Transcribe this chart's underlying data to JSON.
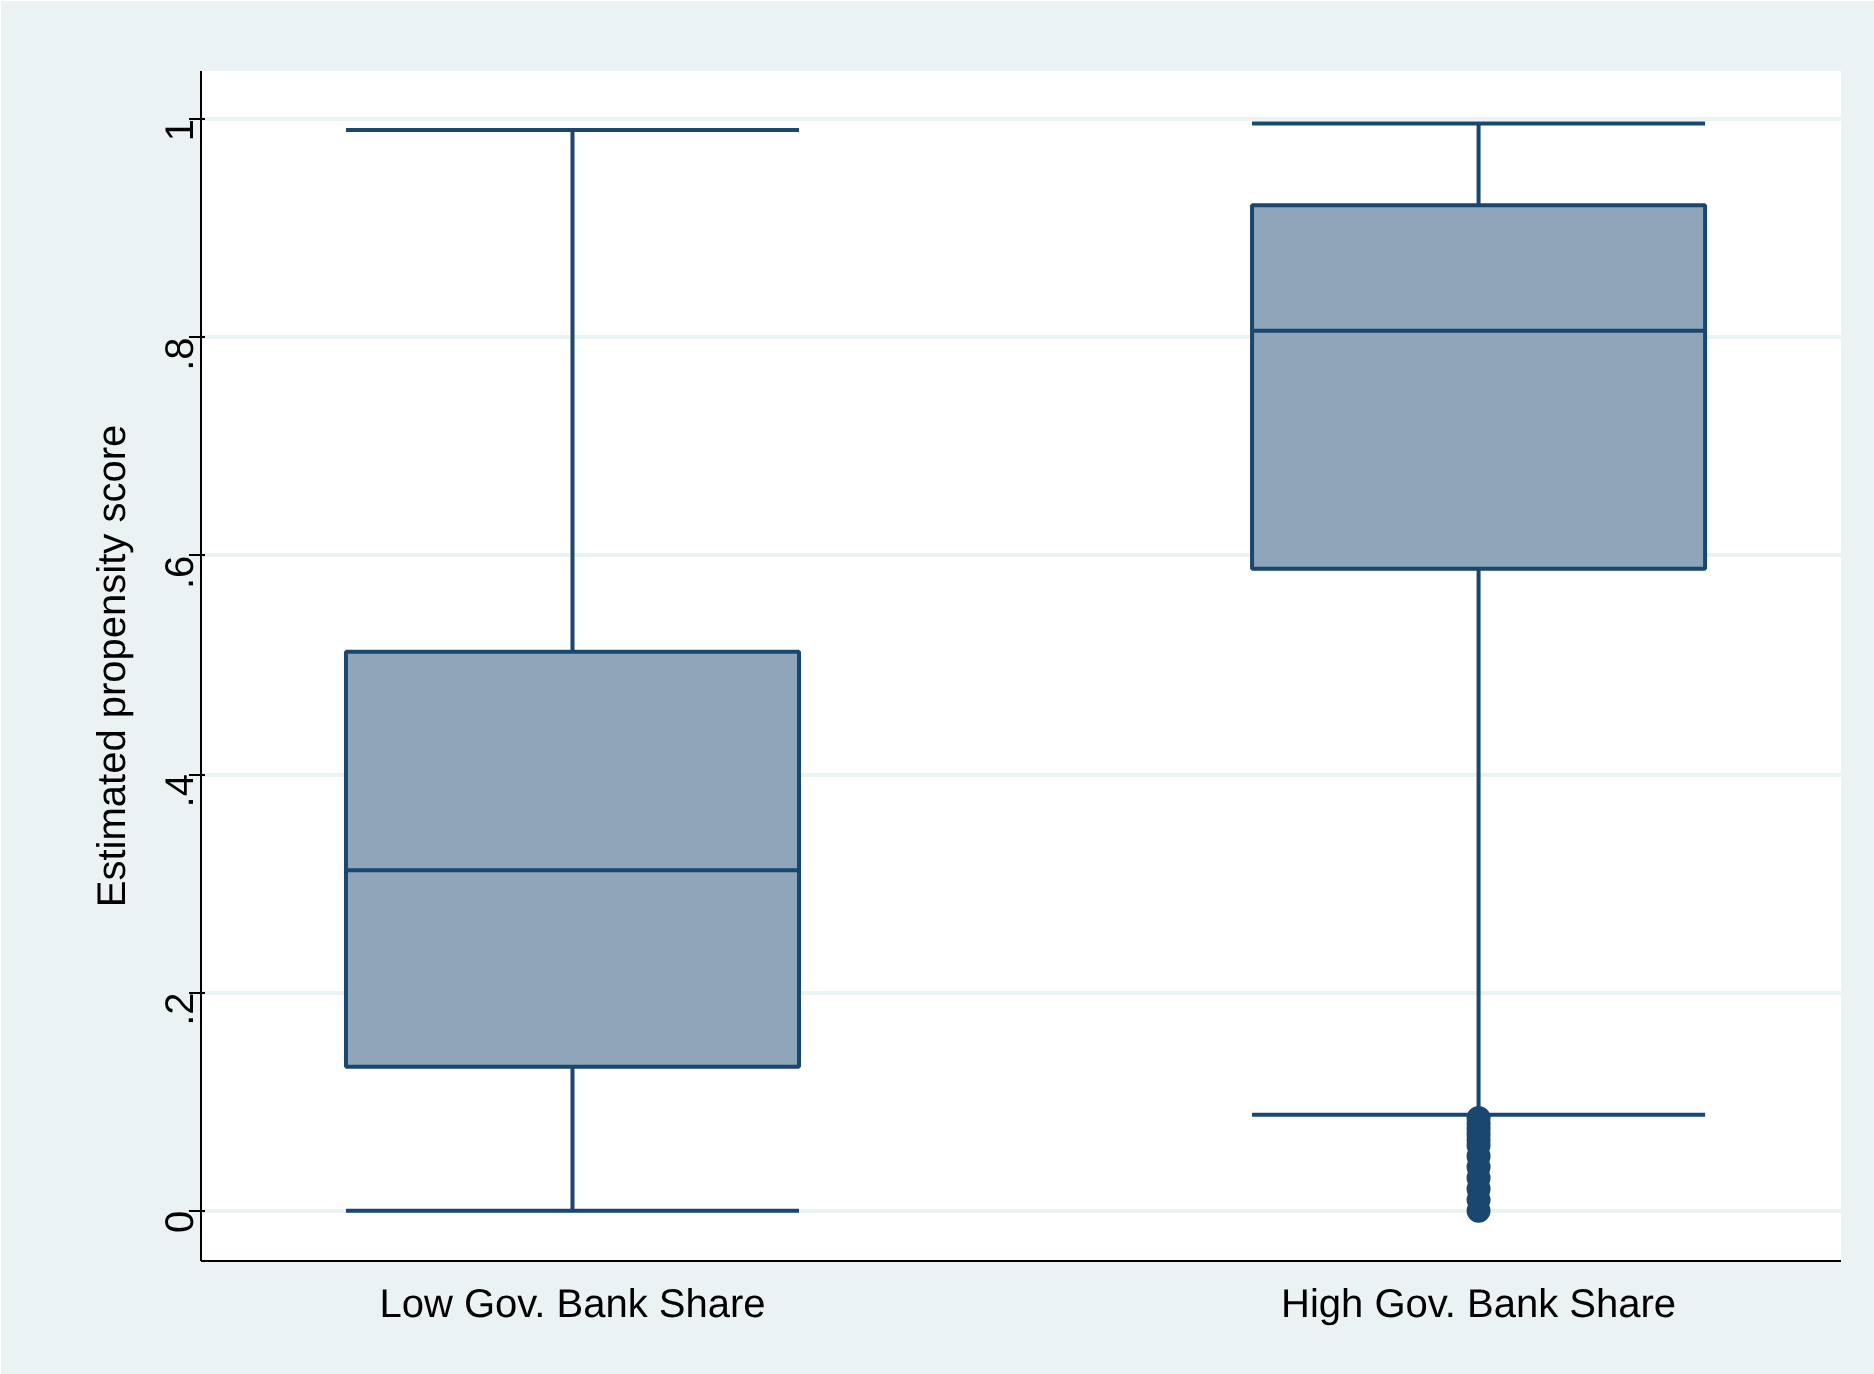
{
  "chart_data": {
    "type": "box",
    "ylabel": "Estimated propensity score",
    "categories": [
      "Low Gov. Bank Share",
      "High Gov. Bank Share"
    ],
    "boxes": [
      {
        "low": 0,
        "q1": 0.132,
        "median": 0.312,
        "q3": 0.512,
        "high": 0.99
      },
      {
        "low": 0.088,
        "q1": 0.588,
        "median": 0.806,
        "q3": 0.921,
        "high": 0.996,
        "outliers": [
          0.085,
          0.08,
          0.075,
          0.07,
          0.065,
          0.06,
          0.05,
          0.04,
          0.03,
          0.02,
          0.01,
          0
        ]
      }
    ],
    "color": "#8ea5ba",
    "ylim": [
      -0.046,
      1.044
    ],
    "yticks": [
      {
        "value": 0,
        "label": "0"
      },
      {
        "value": 0.2,
        "label": ".2"
      },
      {
        "value": 0.4,
        "label": ".4"
      },
      {
        "value": 0.6,
        "label": ".6"
      },
      {
        "value": 0.8,
        "label": ".8"
      },
      {
        "value": 1,
        "label": "1"
      }
    ],
    "grid": "y",
    "marker": "circle"
  }
}
